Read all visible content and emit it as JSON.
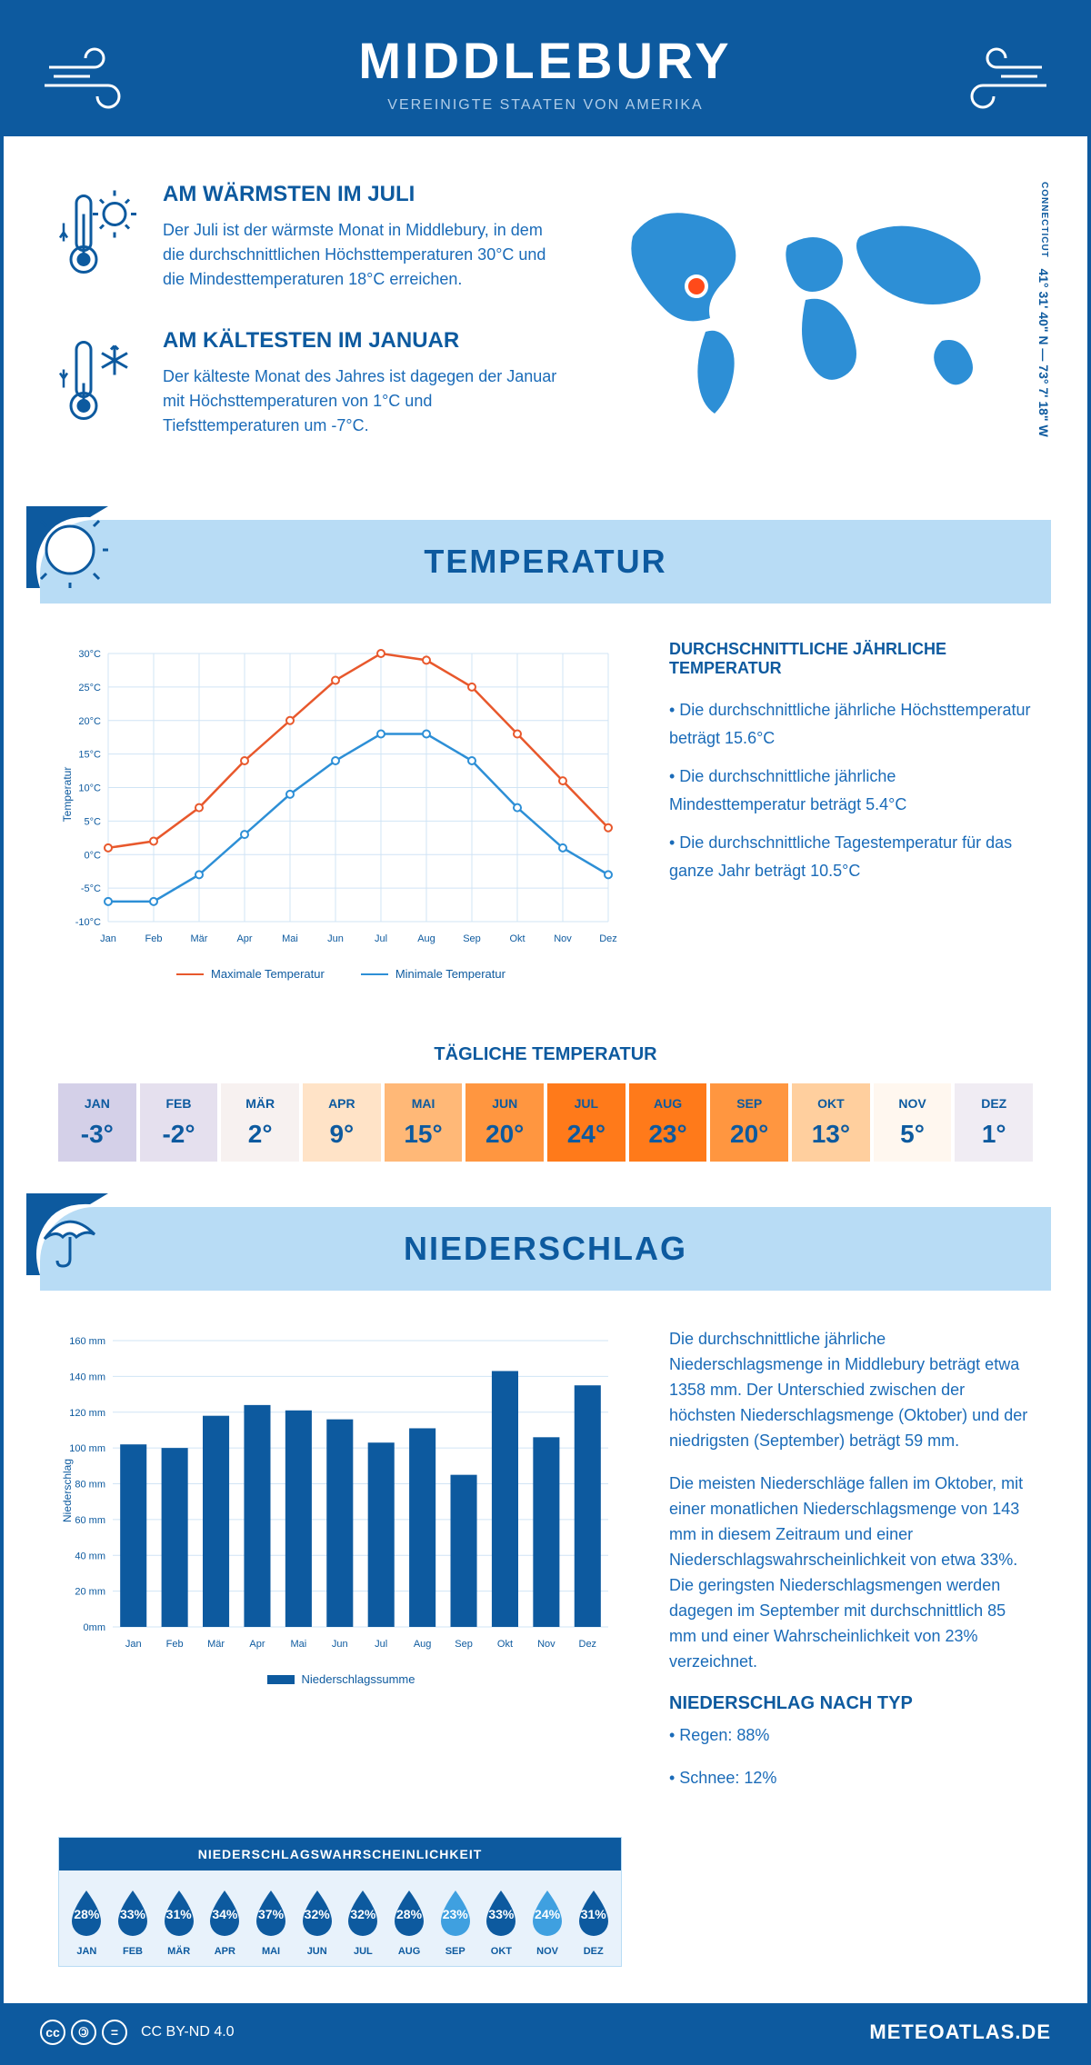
{
  "header": {
    "title": "MIDDLEBURY",
    "subtitle": "VEREINIGTE STAATEN VON AMERIKA"
  },
  "intro": {
    "warmest": {
      "title": "AM WÄRMSTEN IM JULI",
      "text": "Der Juli ist der wärmste Monat in Middlebury, in dem die durchschnittlichen Höchsttemperaturen 30°C und die Mindesttemperaturen 18°C erreichen."
    },
    "coldest": {
      "title": "AM KÄLTESTEN IM JANUAR",
      "text": "Der kälteste Monat des Jahres ist dagegen der Januar mit Höchsttemperaturen von 1°C und Tiefsttemperaturen um -7°C."
    },
    "coords": "41° 31' 40\" N — 73° 7' 18\" W",
    "state": "CONNECTICUT"
  },
  "temp_section": {
    "title": "TEMPERATUR",
    "side_title": "DURCHSCHNITTLICHE JÄHRLICHE TEMPERATUR",
    "bullet1": "• Die durchschnittliche jährliche Höchsttemperatur beträgt 15.6°C",
    "bullet2": "• Die durchschnittliche jährliche Mindesttemperatur beträgt 5.4°C",
    "bullet3": "• Die durchschnittliche Tagestemperatur für das ganze Jahr beträgt 10.5°C",
    "chart": {
      "type": "line",
      "months": [
        "Jan",
        "Feb",
        "Mär",
        "Apr",
        "Mai",
        "Jun",
        "Jul",
        "Aug",
        "Sep",
        "Okt",
        "Nov",
        "Dez"
      ],
      "ylabel": "Temperatur",
      "ylim": [
        -10,
        30
      ],
      "ytick_step": 5,
      "ytick_labels": [
        "-10°C",
        "-5°C",
        "0°C",
        "5°C",
        "10°C",
        "15°C",
        "20°C",
        "25°C",
        "30°C"
      ],
      "grid_color": "#d0e4f5",
      "series": [
        {
          "name": "Maximale Temperatur",
          "color": "#e8582c",
          "values": [
            1,
            2,
            7,
            14,
            20,
            26,
            30,
            29,
            25,
            18,
            11,
            4
          ]
        },
        {
          "name": "Minimale Temperatur",
          "color": "#2d8fd6",
          "values": [
            -7,
            -7,
            -3,
            3,
            9,
            14,
            18,
            18,
            14,
            7,
            1,
            -3
          ]
        }
      ]
    }
  },
  "daily": {
    "title": "TÄGLICHE TEMPERATUR",
    "cells": [
      {
        "m": "JAN",
        "v": "-3°",
        "bg": "#d4d0e8"
      },
      {
        "m": "FEB",
        "v": "-2°",
        "bg": "#e5e0ee"
      },
      {
        "m": "MÄR",
        "v": "2°",
        "bg": "#f7f1f0"
      },
      {
        "m": "APR",
        "v": "9°",
        "bg": "#ffe3c7"
      },
      {
        "m": "MAI",
        "v": "15°",
        "bg": "#ffb877"
      },
      {
        "m": "JUN",
        "v": "20°",
        "bg": "#ff9640"
      },
      {
        "m": "JUL",
        "v": "24°",
        "bg": "#ff7a1a"
      },
      {
        "m": "AUG",
        "v": "23°",
        "bg": "#ff7a1a"
      },
      {
        "m": "SEP",
        "v": "20°",
        "bg": "#ff9640"
      },
      {
        "m": "OKT",
        "v": "13°",
        "bg": "#ffcf9e"
      },
      {
        "m": "NOV",
        "v": "5°",
        "bg": "#fff7ef"
      },
      {
        "m": "DEZ",
        "v": "1°",
        "bg": "#f0ecf3"
      }
    ]
  },
  "precip_section": {
    "title": "NIEDERSCHLAG",
    "para1": "Die durchschnittliche jährliche Niederschlagsmenge in Middlebury beträgt etwa 1358 mm. Der Unterschied zwischen der höchsten Niederschlagsmenge (Oktober) und der niedrigsten (September) beträgt 59 mm.",
    "para2": "Die meisten Niederschläge fallen im Oktober, mit einer monatlichen Niederschlagsmenge von 143 mm in diesem Zeitraum und einer Niederschlagswahrscheinlichkeit von etwa 33%. Die geringsten Niederschlagsmengen werden dagegen im September mit durchschnittlich 85 mm und einer Wahrscheinlichkeit von 23% verzeichnet.",
    "type_title": "NIEDERSCHLAG NACH TYP",
    "rain": "• Regen: 88%",
    "snow": "• Schnee: 12%",
    "chart": {
      "type": "bar",
      "months": [
        "Jan",
        "Feb",
        "Mär",
        "Apr",
        "Mai",
        "Jun",
        "Jul",
        "Aug",
        "Sep",
        "Okt",
        "Nov",
        "Dez"
      ],
      "ylabel": "Niederschlag",
      "ylim": [
        0,
        160
      ],
      "ytick_step": 20,
      "ytick_labels": [
        "0mm",
        "20 mm",
        "40 mm",
        "60 mm",
        "80 mm",
        "100 mm",
        "120 mm",
        "140 mm",
        "160 mm"
      ],
      "bar_color": "#0d5a9f",
      "grid_color": "#d0e4f5",
      "legend": "Niederschlagssumme",
      "values": [
        102,
        100,
        118,
        124,
        121,
        116,
        103,
        111,
        85,
        143,
        106,
        135
      ]
    }
  },
  "prob": {
    "title": "NIEDERSCHLAGSWAHRSCHEINLICHKEIT",
    "drops": [
      {
        "m": "JAN",
        "p": "28%",
        "c": "#0d5a9f"
      },
      {
        "m": "FEB",
        "p": "33%",
        "c": "#0d5a9f"
      },
      {
        "m": "MÄR",
        "p": "31%",
        "c": "#0d5a9f"
      },
      {
        "m": "APR",
        "p": "34%",
        "c": "#0d5a9f"
      },
      {
        "m": "MAI",
        "p": "37%",
        "c": "#0d5a9f"
      },
      {
        "m": "JUN",
        "p": "32%",
        "c": "#0d5a9f"
      },
      {
        "m": "JUL",
        "p": "32%",
        "c": "#0d5a9f"
      },
      {
        "m": "AUG",
        "p": "28%",
        "c": "#0d5a9f"
      },
      {
        "m": "SEP",
        "p": "23%",
        "c": "#3fa0e0"
      },
      {
        "m": "OKT",
        "p": "33%",
        "c": "#0d5a9f"
      },
      {
        "m": "NOV",
        "p": "24%",
        "c": "#3fa0e0"
      },
      {
        "m": "DEZ",
        "p": "31%",
        "c": "#0d5a9f"
      }
    ]
  },
  "footer": {
    "license": "CC BY-ND 4.0",
    "site": "METEOATLAS.DE"
  },
  "colors": {
    "primary": "#0d5a9f",
    "light_blue": "#b8dcf5",
    "text_blue": "#1a6bb8"
  }
}
